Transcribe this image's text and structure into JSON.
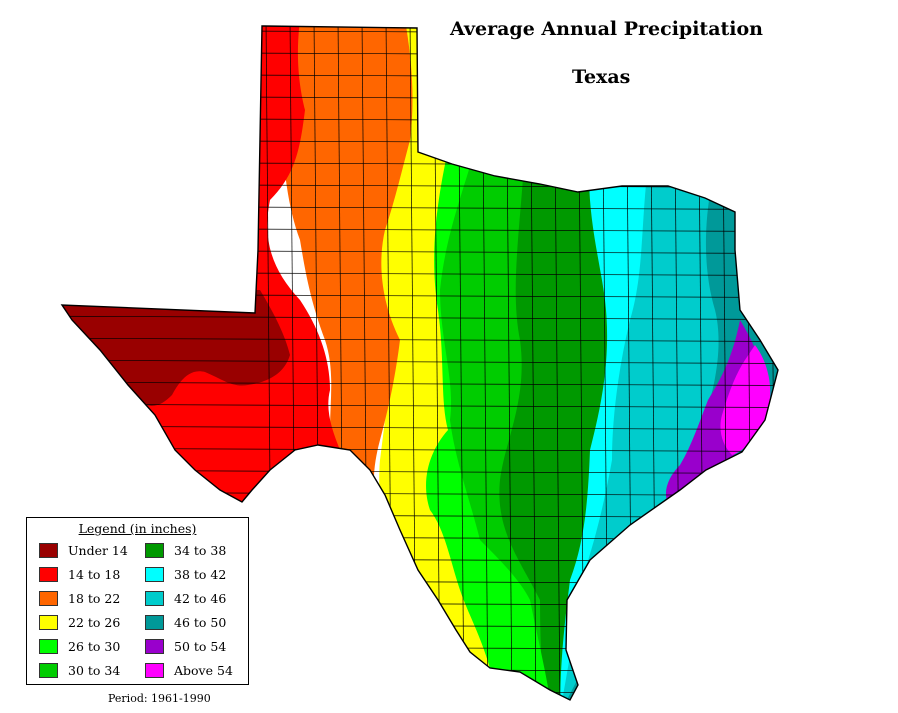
{
  "title": "Average Annual Precipitation",
  "subtitle": "Texas",
  "legend": {
    "title": "Legend (in inches)",
    "items": [
      {
        "label": "Under 14",
        "color": "#990000"
      },
      {
        "label": "14 to 18",
        "color": "#ff0000"
      },
      {
        "label": "18 to 22",
        "color": "#ff6600"
      },
      {
        "label": "22 to 26",
        "color": "#ffff00"
      },
      {
        "label": "26 to 30",
        "color": "#00ff00"
      },
      {
        "label": "30 to 34",
        "color": "#00cc00"
      },
      {
        "label": "34 to 38",
        "color": "#009900"
      },
      {
        "label": "38 to 42",
        "color": "#00ffff"
      },
      {
        "label": "42 to 46",
        "color": "#00cccc"
      },
      {
        "label": "46 to 50",
        "color": "#009999"
      },
      {
        "label": "50 to 54",
        "color": "#9900cc"
      },
      {
        "label": "Above 54",
        "color": "#ff00ff"
      }
    ]
  },
  "period": "Period: 1961-1990"
}
